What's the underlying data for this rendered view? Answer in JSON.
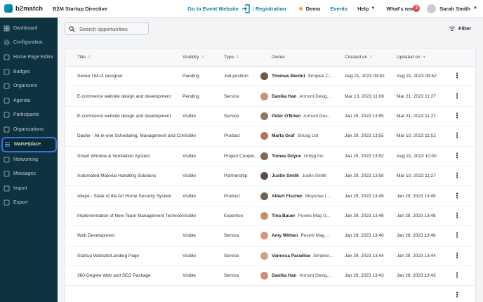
{
  "app": {
    "logo_text": "b2match",
    "event_name": "B2M Startup Directive"
  },
  "header": {
    "go_to_event": "Go to Event Website",
    "registration": "Registration",
    "separator": "|",
    "demo": "Demo",
    "events": "Events",
    "help": "Help",
    "whats_new": "What's new",
    "whats_new_count": "3",
    "user_name": "Sarah Smith"
  },
  "sidebar": {
    "items": [
      {
        "label": "Dashboard",
        "icon": "dashboard-icon",
        "active": false
      },
      {
        "label": "Configuration",
        "icon": "gear-icon",
        "active": false
      },
      {
        "label": "Home Page Editor",
        "icon": "home-page-editor-icon",
        "active": false
      },
      {
        "label": "Badges",
        "icon": "badge-icon",
        "active": false
      },
      {
        "label": "Organizers",
        "icon": "organizers-icon",
        "active": false
      },
      {
        "label": "Agenda",
        "icon": "agenda-icon",
        "active": false
      },
      {
        "label": "Participants",
        "icon": "participants-icon",
        "active": false
      },
      {
        "label": "Organizations",
        "icon": "organizations-icon",
        "active": false
      },
      {
        "label": "Marketplace",
        "icon": "marketplace-icon",
        "active": true
      },
      {
        "label": "Networking",
        "icon": "networking-icon",
        "active": false
      },
      {
        "label": "Messages",
        "icon": "messages-icon",
        "active": false
      },
      {
        "label": "Import",
        "icon": "import-icon",
        "active": false
      },
      {
        "label": "Export",
        "icon": "export-icon",
        "active": false
      }
    ]
  },
  "toolbar": {
    "search_placeholder": "Search opportunities",
    "filter_label": "Filter"
  },
  "table": {
    "headers": {
      "title": "Title",
      "visibility": "Visibility",
      "type": "Type",
      "owner": "Owner",
      "created": "Created on",
      "updated": "Updated on"
    },
    "rows": [
      {
        "title": "Senior UI/UX designer",
        "visibility": "Pending",
        "type": "Job position",
        "owner": "Thomas Berdut",
        "company": "Simplex C...",
        "created": "Aug 21, 2023 09:52",
        "updated": "Aug 21, 2023 09:52",
        "avatar_color": "#6b5a4e"
      },
      {
        "title": "E-commerce website design and development",
        "visibility": "Pending",
        "type": "Service",
        "owner": "Danika Han",
        "company": "Armunt Desig...",
        "created": "Mar 13, 2023 11:08",
        "updated": "Mar 21, 2023 11:27",
        "avatar_color": "#c98f7a"
      },
      {
        "title": "E-commerce website design and development",
        "visibility": "Visible",
        "type": "Service",
        "owner": "Peter O'Brien",
        "company": "Armunt Des...",
        "created": "Jan 29, 2023 13:55",
        "updated": "Mar 21, 2023 11:27",
        "avatar_color": "#8a7a6c"
      },
      {
        "title": "Dashe - All-in-one Scheduling, Management and Commu...",
        "visibility": "Visible",
        "type": "Product",
        "owner": "Marta Graf",
        "company": "Strucg Ltd",
        "created": "Jan 29, 2023 13:55",
        "updated": "Mar 10, 2023 11:52",
        "avatar_color": "#b5735c"
      },
      {
        "title": "Smart Window & Ventilation System",
        "visibility": "Visible",
        "type": "Project Cooper...",
        "owner": "Tomas Doyce",
        "company": "Urbyg Inc.",
        "created": "Jan 29, 2023 13:52",
        "updated": "Aug 21, 2023 10:00",
        "avatar_color": "#7d6b60"
      },
      {
        "title": "Automated Material Handling Solutions",
        "visibility": "Visible",
        "type": "Partnership",
        "owner": "Justin Smith",
        "company": "Justin Smith",
        "created": "Jan 29, 2023 13:50",
        "updated": "Mar 10, 2023 11:27",
        "avatar_color": "#5e4b42"
      },
      {
        "title": "Alleye - State of the Art Home Security System",
        "visibility": "Visible",
        "type": "Product",
        "owner": "Albert Fischer",
        "company": "Moyurwe I...",
        "created": "Jan 29, 2023 13:49",
        "updated": "Jan 29, 2023 13:49",
        "avatar_color": "#6f6158"
      },
      {
        "title": "Implementation of New Team Management Technology",
        "visibility": "Visible",
        "type": "Expertise",
        "owner": "Tina Bauer",
        "company": "Pexels Mag G...",
        "created": "Jan 29, 2023 13:48",
        "updated": "Jan 29, 2023 13:48",
        "avatar_color": "#c2906f"
      },
      {
        "title": "Web Development",
        "visibility": "Visible",
        "type": "Service",
        "owner": "Amy Withen",
        "company": "Pexels Mag ...",
        "created": "Jan 29, 2023 13:46",
        "updated": "Jan 29, 2023 13:46",
        "avatar_color": "#d19a80"
      },
      {
        "title": "Startup Website/Landing Page",
        "visibility": "Visible",
        "type": "Service",
        "owner": "Vanessa Paradise",
        "company": "Simplex...",
        "created": "Jan 29, 2023 13:44",
        "updated": "Jan 29, 2023 13:44",
        "avatar_color": "#c9a58c"
      },
      {
        "title": "360-Degree Web and SEO Package",
        "visibility": "Visible",
        "type": "Service",
        "owner": "Danika Han",
        "company": "Armunt Desig...",
        "created": "Jan 29, 2023 13:43",
        "updated": "Jan 29, 2023 13:43",
        "avatar_color": "#c98f7a"
      },
      {
        "title": "",
        "visibility": "",
        "type": "",
        "owner": "",
        "company": "",
        "created": "",
        "updated": "",
        "avatar_color": "#ffffff"
      }
    ]
  },
  "colors": {
    "sidebar_bg": "#0f3240",
    "accent": "#0b7fa3",
    "active_outline": "#3a73e0"
  }
}
